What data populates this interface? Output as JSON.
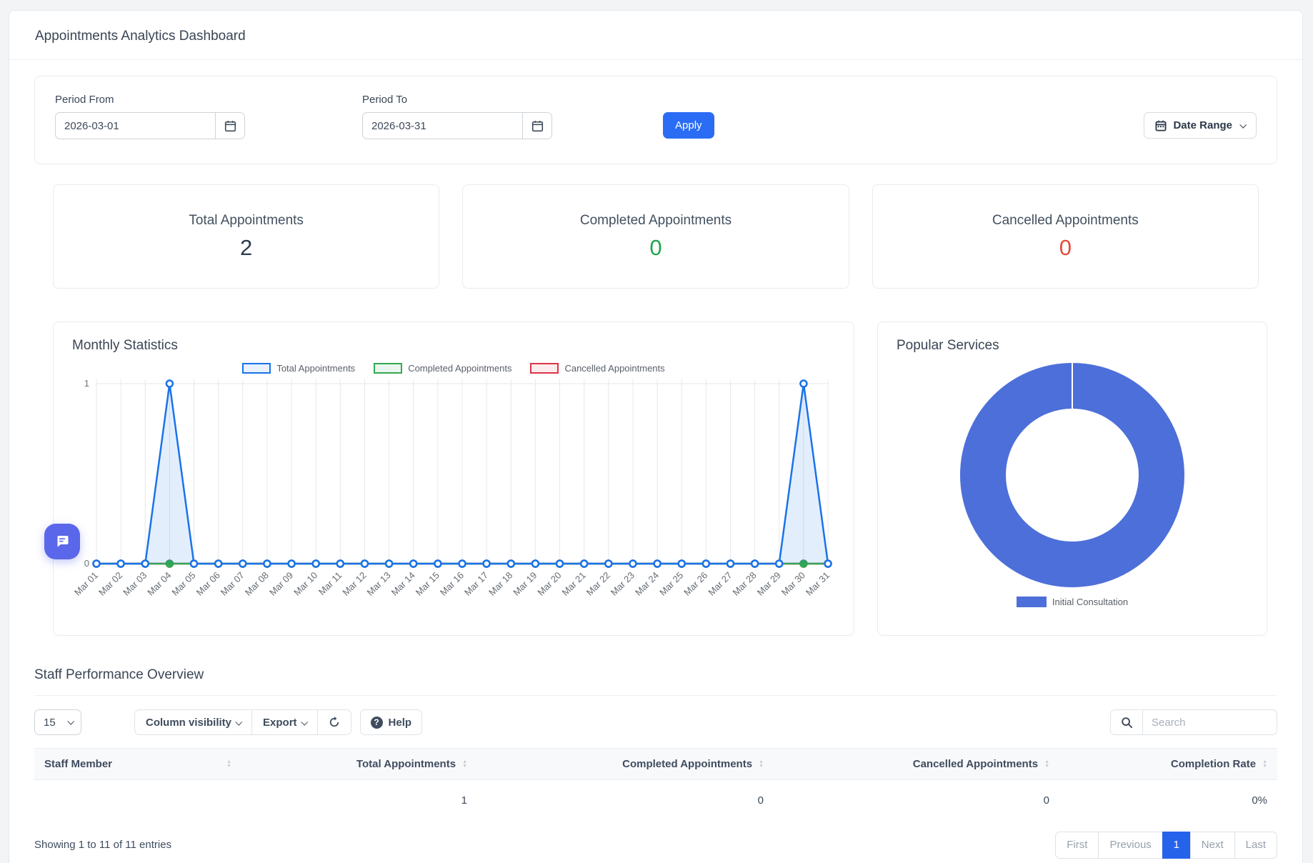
{
  "header": {
    "title": "Appointments Analytics Dashboard"
  },
  "filters": {
    "period_from": {
      "label": "Period From",
      "value": "2026-03-01"
    },
    "period_to": {
      "label": "Period To",
      "value": "2026-03-31"
    },
    "apply_label": "Apply",
    "date_range_label": "Date Range"
  },
  "stats": [
    {
      "label": "Total Appointments",
      "value": "2",
      "color": "#2e3b4e"
    },
    {
      "label": "Completed Appointments",
      "value": "0",
      "color": "#1ea64f"
    },
    {
      "label": "Cancelled Appointments",
      "value": "0",
      "color": "#e74c3c"
    }
  ],
  "chart_data": [
    {
      "type": "line",
      "title": "Monthly Statistics",
      "x": [
        "Mar 01",
        "Mar 02",
        "Mar 03",
        "Mar 04",
        "Mar 05",
        "Mar 06",
        "Mar 07",
        "Mar 08",
        "Mar 09",
        "Mar 10",
        "Mar 11",
        "Mar 12",
        "Mar 13",
        "Mar 14",
        "Mar 15",
        "Mar 16",
        "Mar 17",
        "Mar 18",
        "Mar 19",
        "Mar 20",
        "Mar 21",
        "Mar 22",
        "Mar 23",
        "Mar 24",
        "Mar 25",
        "Mar 26",
        "Mar 27",
        "Mar 28",
        "Mar 29",
        "Mar 30",
        "Mar 31"
      ],
      "series": [
        {
          "name": "Total Appointments",
          "color": "#1a73e8",
          "legend_fill": "#e8f1fd",
          "fill": "rgba(26,115,232,0.12)",
          "marker": "hollow",
          "values": [
            0,
            0,
            0,
            1,
            0,
            0,
            0,
            0,
            0,
            0,
            0,
            0,
            0,
            0,
            0,
            0,
            0,
            0,
            0,
            0,
            0,
            0,
            0,
            0,
            0,
            0,
            0,
            0,
            0,
            1,
            0
          ]
        },
        {
          "name": "Completed Appointments",
          "color": "#34a853",
          "legend_fill": "#e9f5ee",
          "marker": "solid",
          "values": [
            0,
            0,
            0,
            0,
            0,
            0,
            0,
            0,
            0,
            0,
            0,
            0,
            0,
            0,
            0,
            0,
            0,
            0,
            0,
            0,
            0,
            0,
            0,
            0,
            0,
            0,
            0,
            0,
            0,
            0,
            0
          ]
        },
        {
          "name": "Cancelled Appointments",
          "color": "#dc3545",
          "legend_fill": "#fdecee",
          "marker": "solid",
          "values": [
            0,
            0,
            0,
            0,
            0,
            0,
            0,
            0,
            0,
            0,
            0,
            0,
            0,
            0,
            0,
            0,
            0,
            0,
            0,
            0,
            0,
            0,
            0,
            0,
            0,
            0,
            0,
            0,
            0,
            0,
            0
          ]
        }
      ],
      "ylim": [
        0,
        1
      ],
      "yticks": [
        0,
        1
      ],
      "legend_position": "top",
      "grid": "vertical-daily"
    },
    {
      "type": "pie",
      "title": "Popular Services",
      "labels": [
        "Initial Consultation"
      ],
      "values": [
        100
      ],
      "colors": [
        "#4d6fd9"
      ],
      "donut": true,
      "legend_position": "bottom"
    }
  ],
  "staff_table": {
    "title": "Staff Performance Overview",
    "page_size": "15",
    "column_visibility_label": "Column visibility",
    "export_label": "Export",
    "help_label": "Help",
    "search_placeholder": "Search",
    "columns": [
      "Staff Member",
      "Total Appointments",
      "Completed Appointments",
      "Cancelled Appointments",
      "Completion Rate"
    ],
    "rows": [
      [
        "",
        "1",
        "0",
        "0",
        "0%"
      ]
    ],
    "showing_text": "Showing 1 to 11 of 11 entries",
    "pagination": [
      "First",
      "Previous",
      "1",
      "Next",
      "Last"
    ],
    "active_page": "1"
  },
  "icons": {
    "help_glyph": "?",
    "sort_asc": "▲",
    "sort_desc": "▼"
  }
}
